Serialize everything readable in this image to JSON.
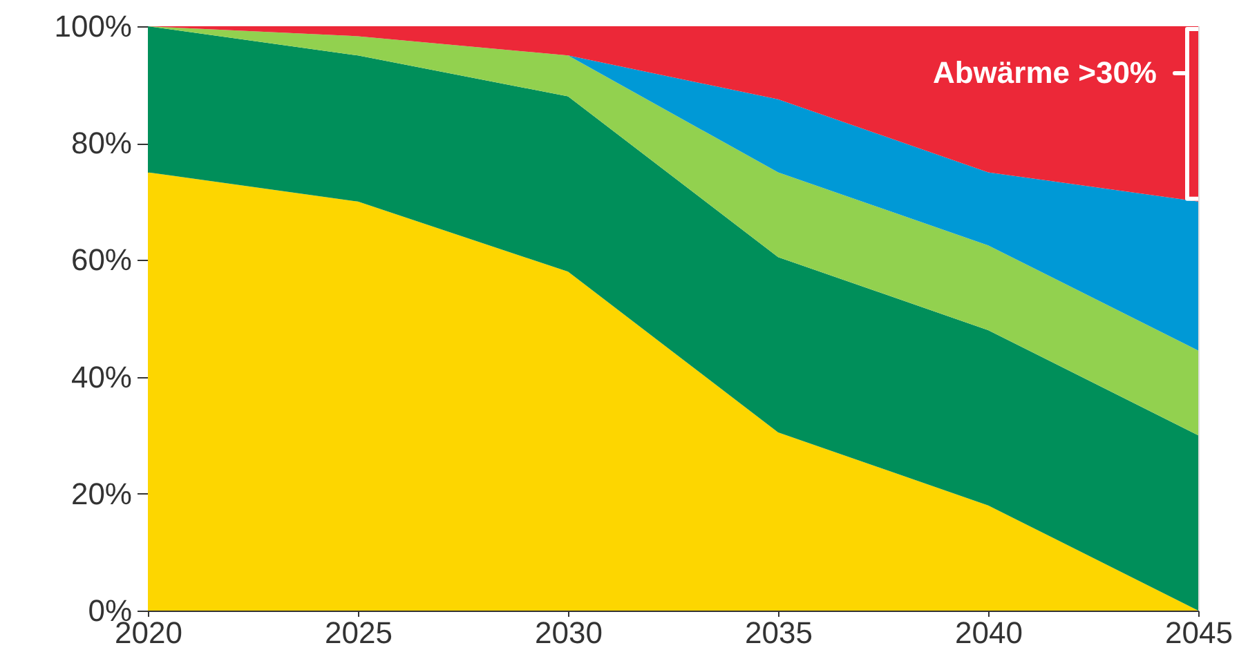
{
  "chart_data": {
    "type": "area",
    "stacked": true,
    "x": [
      2020,
      2025,
      2030,
      2035,
      2040,
      2045
    ],
    "xlim": [
      2020,
      2045
    ],
    "xticks": [
      2020,
      2025,
      2030,
      2035,
      2040,
      2045
    ],
    "ylim": [
      0,
      100
    ],
    "yticks": [
      {
        "value": 0,
        "label": "0%"
      },
      {
        "value": 20,
        "label": "20%"
      },
      {
        "value": 40,
        "label": "40%"
      },
      {
        "value": 60,
        "label": "60%"
      },
      {
        "value": 80,
        "label": "80%"
      },
      {
        "value": 100,
        "label": "100%"
      }
    ],
    "series": [
      {
        "color": "#fdd600",
        "values": [
          75,
          70,
          58,
          30.5,
          18,
          0
        ]
      },
      {
        "color": "#008f5a",
        "values": [
          25,
          25,
          30,
          30,
          30,
          30
        ]
      },
      {
        "color": "#92d14f",
        "values": [
          0,
          3.3,
          7,
          14.5,
          14.5,
          14.5
        ]
      },
      {
        "color": "#0099d6",
        "values": [
          0,
          0,
          0,
          12.5,
          12.5,
          25.5
        ]
      },
      {
        "color": "#ec2838",
        "values": [
          0,
          1.7,
          5,
          12.5,
          25,
          30
        ]
      }
    ],
    "annotations": [
      "Abwärme >30%"
    ],
    "grid": false,
    "legend": false
  }
}
